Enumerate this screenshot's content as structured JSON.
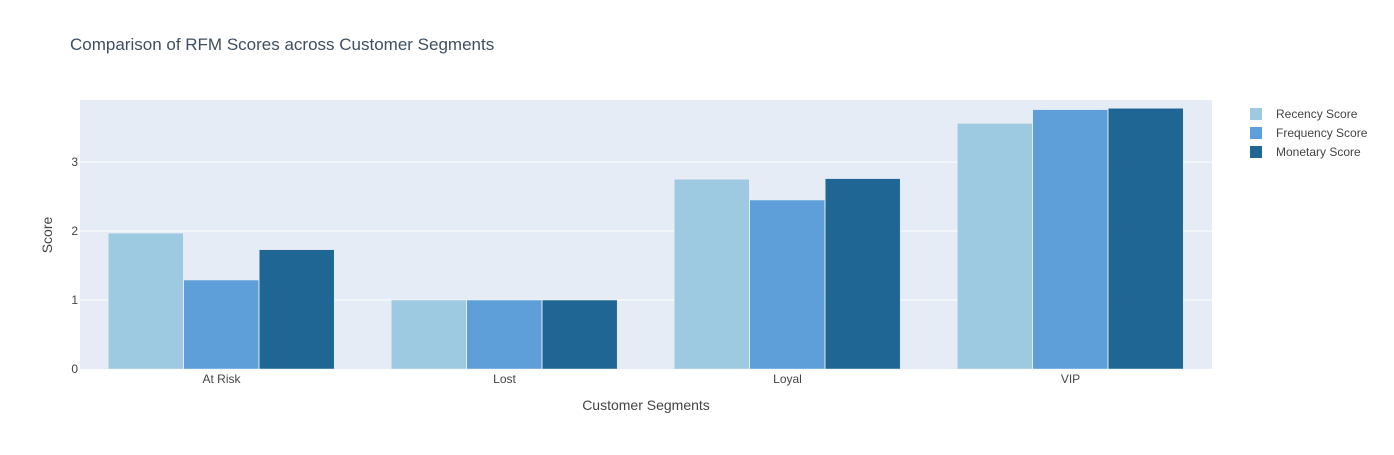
{
  "chart_data": {
    "type": "bar",
    "title": "Comparison of RFM Scores across Customer Segments",
    "xlabel": "Customer Segments",
    "ylabel": "Score",
    "categories": [
      "At Risk",
      "Lost",
      "Loyal",
      "VIP"
    ],
    "ylim": [
      0,
      3.9
    ],
    "yticks": [
      0,
      1,
      2,
      3
    ],
    "grid": true,
    "legend_position": "top-right",
    "series": [
      {
        "name": "Recency Score",
        "color": "#9ecae1",
        "values": [
          1.97,
          1.0,
          2.75,
          3.56
        ]
      },
      {
        "name": "Frequency Score",
        "color": "#5e9fd9",
        "values": [
          1.29,
          1.0,
          2.45,
          3.76
        ]
      },
      {
        "name": "Monetary Score",
        "color": "#1f6694",
        "values": [
          1.73,
          1.0,
          2.76,
          3.78
        ]
      }
    ],
    "colors": {
      "plot_background": "#e5ecf6",
      "text": "#444444",
      "title": "#3f4f5f"
    }
  }
}
